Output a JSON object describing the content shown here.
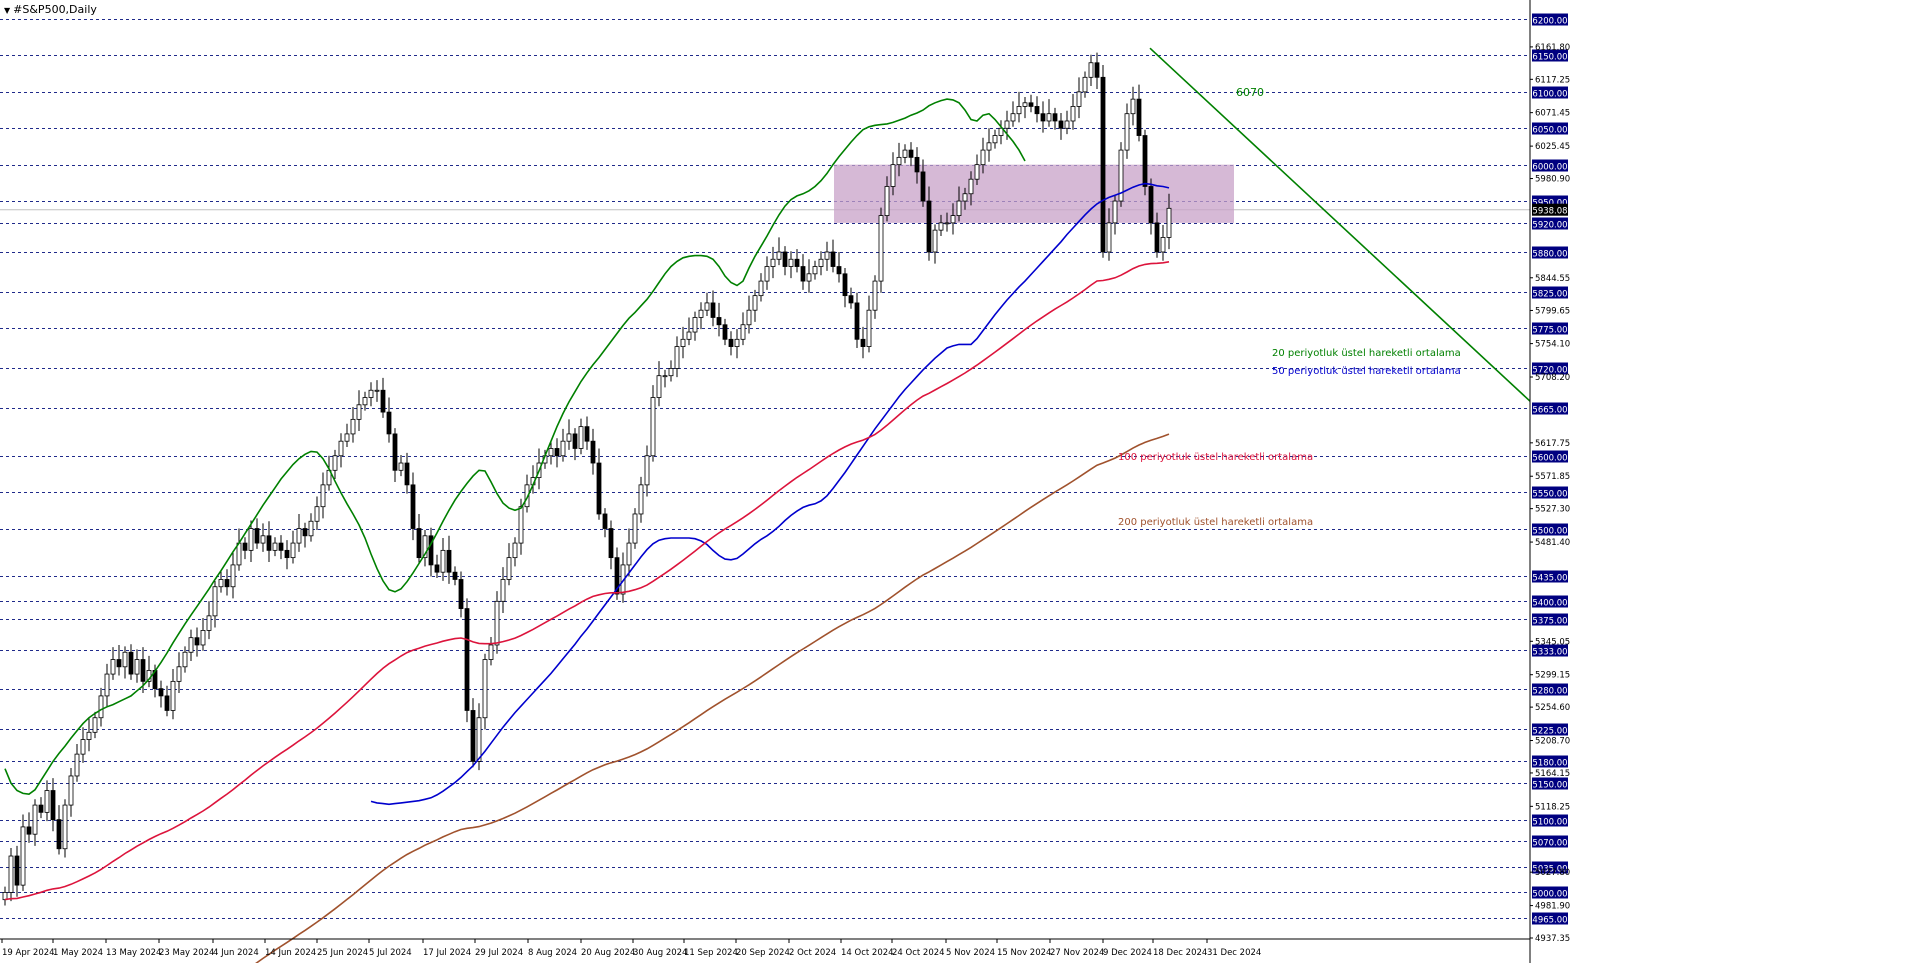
{
  "chart_data": {
    "type": "candlestick",
    "title": "#S&P500,Daily",
    "ylim": [
      4937.35,
      6207.0
    ],
    "grid": "horizontal-dashed",
    "colors": {
      "grid": "#1f2a8a",
      "candle_up": "#ffffff",
      "candle_down": "#000000",
      "ema20": "#008000",
      "ema50": "#0000cd",
      "ema100": "#dc143c",
      "ema200": "#a0522d",
      "trendline": "#008000",
      "zone": "#c8a2c8",
      "hline_label_bg": "#000080",
      "current_label_bg": "#000000"
    },
    "hlines": [
      6200,
      6150,
      6100,
      6050,
      6000,
      5950,
      5920,
      5880,
      5825,
      5775,
      5720,
      5665,
      5600,
      5550,
      5500,
      5435,
      5400,
      5375,
      5333,
      5280,
      5225,
      5180,
      5150,
      5100,
      5070,
      5035,
      5000,
      4965
    ],
    "y_ticks": [
      "6161.80",
      "6117.25",
      "6071.45",
      "6025.45",
      "5980.90",
      "5844.55",
      "5799.65",
      "5754.10",
      "5708.20",
      "5617.75",
      "5571.85",
      "5527.30",
      "5481.40",
      "5345.05",
      "5299.15",
      "5254.60",
      "5208.70",
      "5164.15",
      "5118.25",
      "5027.80",
      "4981.90",
      "4937.35"
    ],
    "current_price": "5938.08",
    "x_labels": [
      "19 Apr 2024",
      "1 May 2024",
      "13 May 2024",
      "23 May 2024",
      "4 Jun 2024",
      "14 Jun 2024",
      "25 Jun 2024",
      "5 Jul 2024",
      "17 Jul 2024",
      "29 Jul 2024",
      "8 Aug 2024",
      "20 Aug 2024",
      "30 Aug 2024",
      "11 Sep 2024",
      "20 Sep 2024",
      "2 Oct 2024",
      "14 Oct 2024",
      "24 Oct 2024",
      "5 Nov 2024",
      "15 Nov 2024",
      "27 Nov 2024",
      "9 Dec 2024",
      "18 Dec 2024",
      "31 Dec 2024"
    ],
    "closes": [
      5000,
      5050,
      5010,
      5090,
      5080,
      5120,
      5110,
      5140,
      5100,
      5060,
      5120,
      5160,
      5190,
      5210,
      5220,
      5240,
      5270,
      5300,
      5320,
      5310,
      5330,
      5300,
      5320,
      5290,
      5305,
      5280,
      5270,
      5250,
      5290,
      5310,
      5330,
      5350,
      5340,
      5360,
      5380,
      5420,
      5430,
      5420,
      5450,
      5480,
      5470,
      5500,
      5480,
      5490,
      5470,
      5480,
      5470,
      5460,
      5480,
      5500,
      5490,
      5510,
      5530,
      5560,
      5580,
      5600,
      5620,
      5630,
      5650,
      5670,
      5680,
      5690,
      5690,
      5660,
      5630,
      5580,
      5590,
      5560,
      5500,
      5460,
      5490,
      5450,
      5440,
      5470,
      5440,
      5430,
      5390,
      5250,
      5180,
      5240,
      5320,
      5340,
      5400,
      5430,
      5460,
      5480,
      5530,
      5560,
      5570,
      5590,
      5600,
      5610,
      5600,
      5620,
      5630,
      5610,
      5640,
      5620,
      5590,
      5520,
      5500,
      5460,
      5410,
      5450,
      5480,
      5520,
      5560,
      5600,
      5680,
      5710,
      5710,
      5720,
      5750,
      5760,
      5770,
      5790,
      5800,
      5810,
      5790,
      5780,
      5760,
      5750,
      5760,
      5780,
      5800,
      5820,
      5840,
      5860,
      5870,
      5880,
      5860,
      5870,
      5860,
      5840,
      5850,
      5860,
      5870,
      5880,
      5860,
      5850,
      5820,
      5810,
      5760,
      5750,
      5800,
      5840,
      5930,
      5970,
      6000,
      6010,
      6020,
      6010,
      5990,
      5950,
      5880,
      5910,
      5920,
      5920,
      5930,
      5950,
      5960,
      5980,
      6000,
      6020,
      6030,
      6040,
      6050,
      6060,
      6070,
      6080,
      6085,
      6080,
      6070,
      6060,
      6070,
      6060,
      6050,
      6060,
      6080,
      6100,
      6120,
      6140,
      6120,
      5880,
      5920,
      5950,
      6020,
      6070,
      6090,
      6040,
      5970,
      5920,
      5880,
      5900,
      5940
    ],
    "ema20": [
      5170,
      5150,
      5140,
      5136,
      5135,
      5141,
      5154,
      5167,
      5180,
      5191,
      5201,
      5212,
      5222,
      5232,
      5240,
      5246,
      5251,
      5255,
      5258,
      5262,
      5266,
      5270,
      5277,
      5284,
      5293,
      5304,
      5316,
      5329,
      5343,
      5356,
      5369,
      5381,
      5393,
      5405,
      5417,
      5430,
      5442,
      5455,
      5468,
      5480,
      5493,
      5506,
      5519,
      5532,
      5544,
      5556,
      5568,
      5578,
      5588,
      5596,
      5602,
      5606,
      5605,
      5596,
      5582,
      5565,
      5549,
      5534,
      5520,
      5505,
      5487,
      5465,
      5445,
      5428,
      5416,
      5413,
      5417,
      5427,
      5439,
      5452,
      5465,
      5479,
      5494,
      5510,
      5525,
      5539,
      5551,
      5562,
      5572,
      5580,
      5579,
      5564,
      5548,
      5535,
      5528,
      5525,
      5528,
      5542,
      5560,
      5579,
      5600,
      5620,
      5640,
      5658,
      5674,
      5688,
      5702,
      5714,
      5725,
      5735,
      5746,
      5757,
      5768,
      5779,
      5789,
      5797,
      5806,
      5815,
      5826,
      5838,
      5850,
      5860,
      5867,
      5872,
      5874,
      5875,
      5875,
      5874,
      5870,
      5860,
      5847,
      5838,
      5834,
      5840,
      5858,
      5874,
      5888,
      5902,
      5917,
      5931,
      5943,
      5952,
      5957,
      5960,
      5964,
      5970,
      5978,
      5988,
      6000,
      6011,
      6021,
      6031,
      6040,
      6048,
      6052,
      6054,
      6055,
      6056,
      6058,
      6061,
      6064,
      6068,
      6071,
      6075,
      6081,
      6085,
      6088,
      6090,
      6089,
      6085,
      6075,
      6062,
      6060,
      6068,
      6070,
      6062,
      6052,
      6042,
      6032,
      6020,
      6005
    ],
    "ema50": [
      5125,
      5123,
      5122,
      5121,
      5122,
      5123,
      5124,
      5125,
      5126,
      5128,
      5130,
      5134,
      5139,
      5145,
      5151,
      5158,
      5166,
      5174,
      5184,
      5194,
      5205,
      5216,
      5227,
      5237,
      5247,
      5256,
      5265,
      5274,
      5283,
      5292,
      5301,
      5311,
      5321,
      5331,
      5341,
      5352,
      5362,
      5373,
      5384,
      5395,
      5406,
      5417,
      5428,
      5439,
      5450,
      5461,
      5471,
      5479,
      5484,
      5486,
      5487,
      5487,
      5487,
      5487,
      5486,
      5483,
      5478,
      5470,
      5463,
      5458,
      5457,
      5459,
      5465,
      5472,
      5479,
      5485,
      5490,
      5496,
      5503,
      5511,
      5518,
      5524,
      5529,
      5532,
      5534,
      5538,
      5545,
      5555,
      5566,
      5577,
      5589,
      5601,
      5613,
      5625,
      5637,
      5648,
      5659,
      5670,
      5681,
      5691,
      5700,
      5709,
      5718,
      5726,
      5734,
      5741,
      5748,
      5751,
      5753,
      5753,
      5753,
      5761,
      5772,
      5783,
      5794,
      5804,
      5814,
      5823,
      5832,
      5840,
      5849,
      5858,
      5867,
      5876,
      5885,
      5894,
      5904,
      5913,
      5922,
      5931,
      5939,
      5946,
      5951,
      5955,
      5958,
      5961,
      5965,
      5969,
      5972,
      5974,
      5973,
      5971,
      5970,
      5968
    ]
  },
  "annotations": {
    "trendline_label": "6070",
    "ema20_label": "20 periyotluk üstel hareketli ortalama",
    "ema50_label": "50 periyotluk üstel hareketli ortalama",
    "ema100_label": "100 periyotluk üstel hareketli ortalama",
    "ema200_label": "200 periyotluk üstel hareketli ortalama"
  }
}
